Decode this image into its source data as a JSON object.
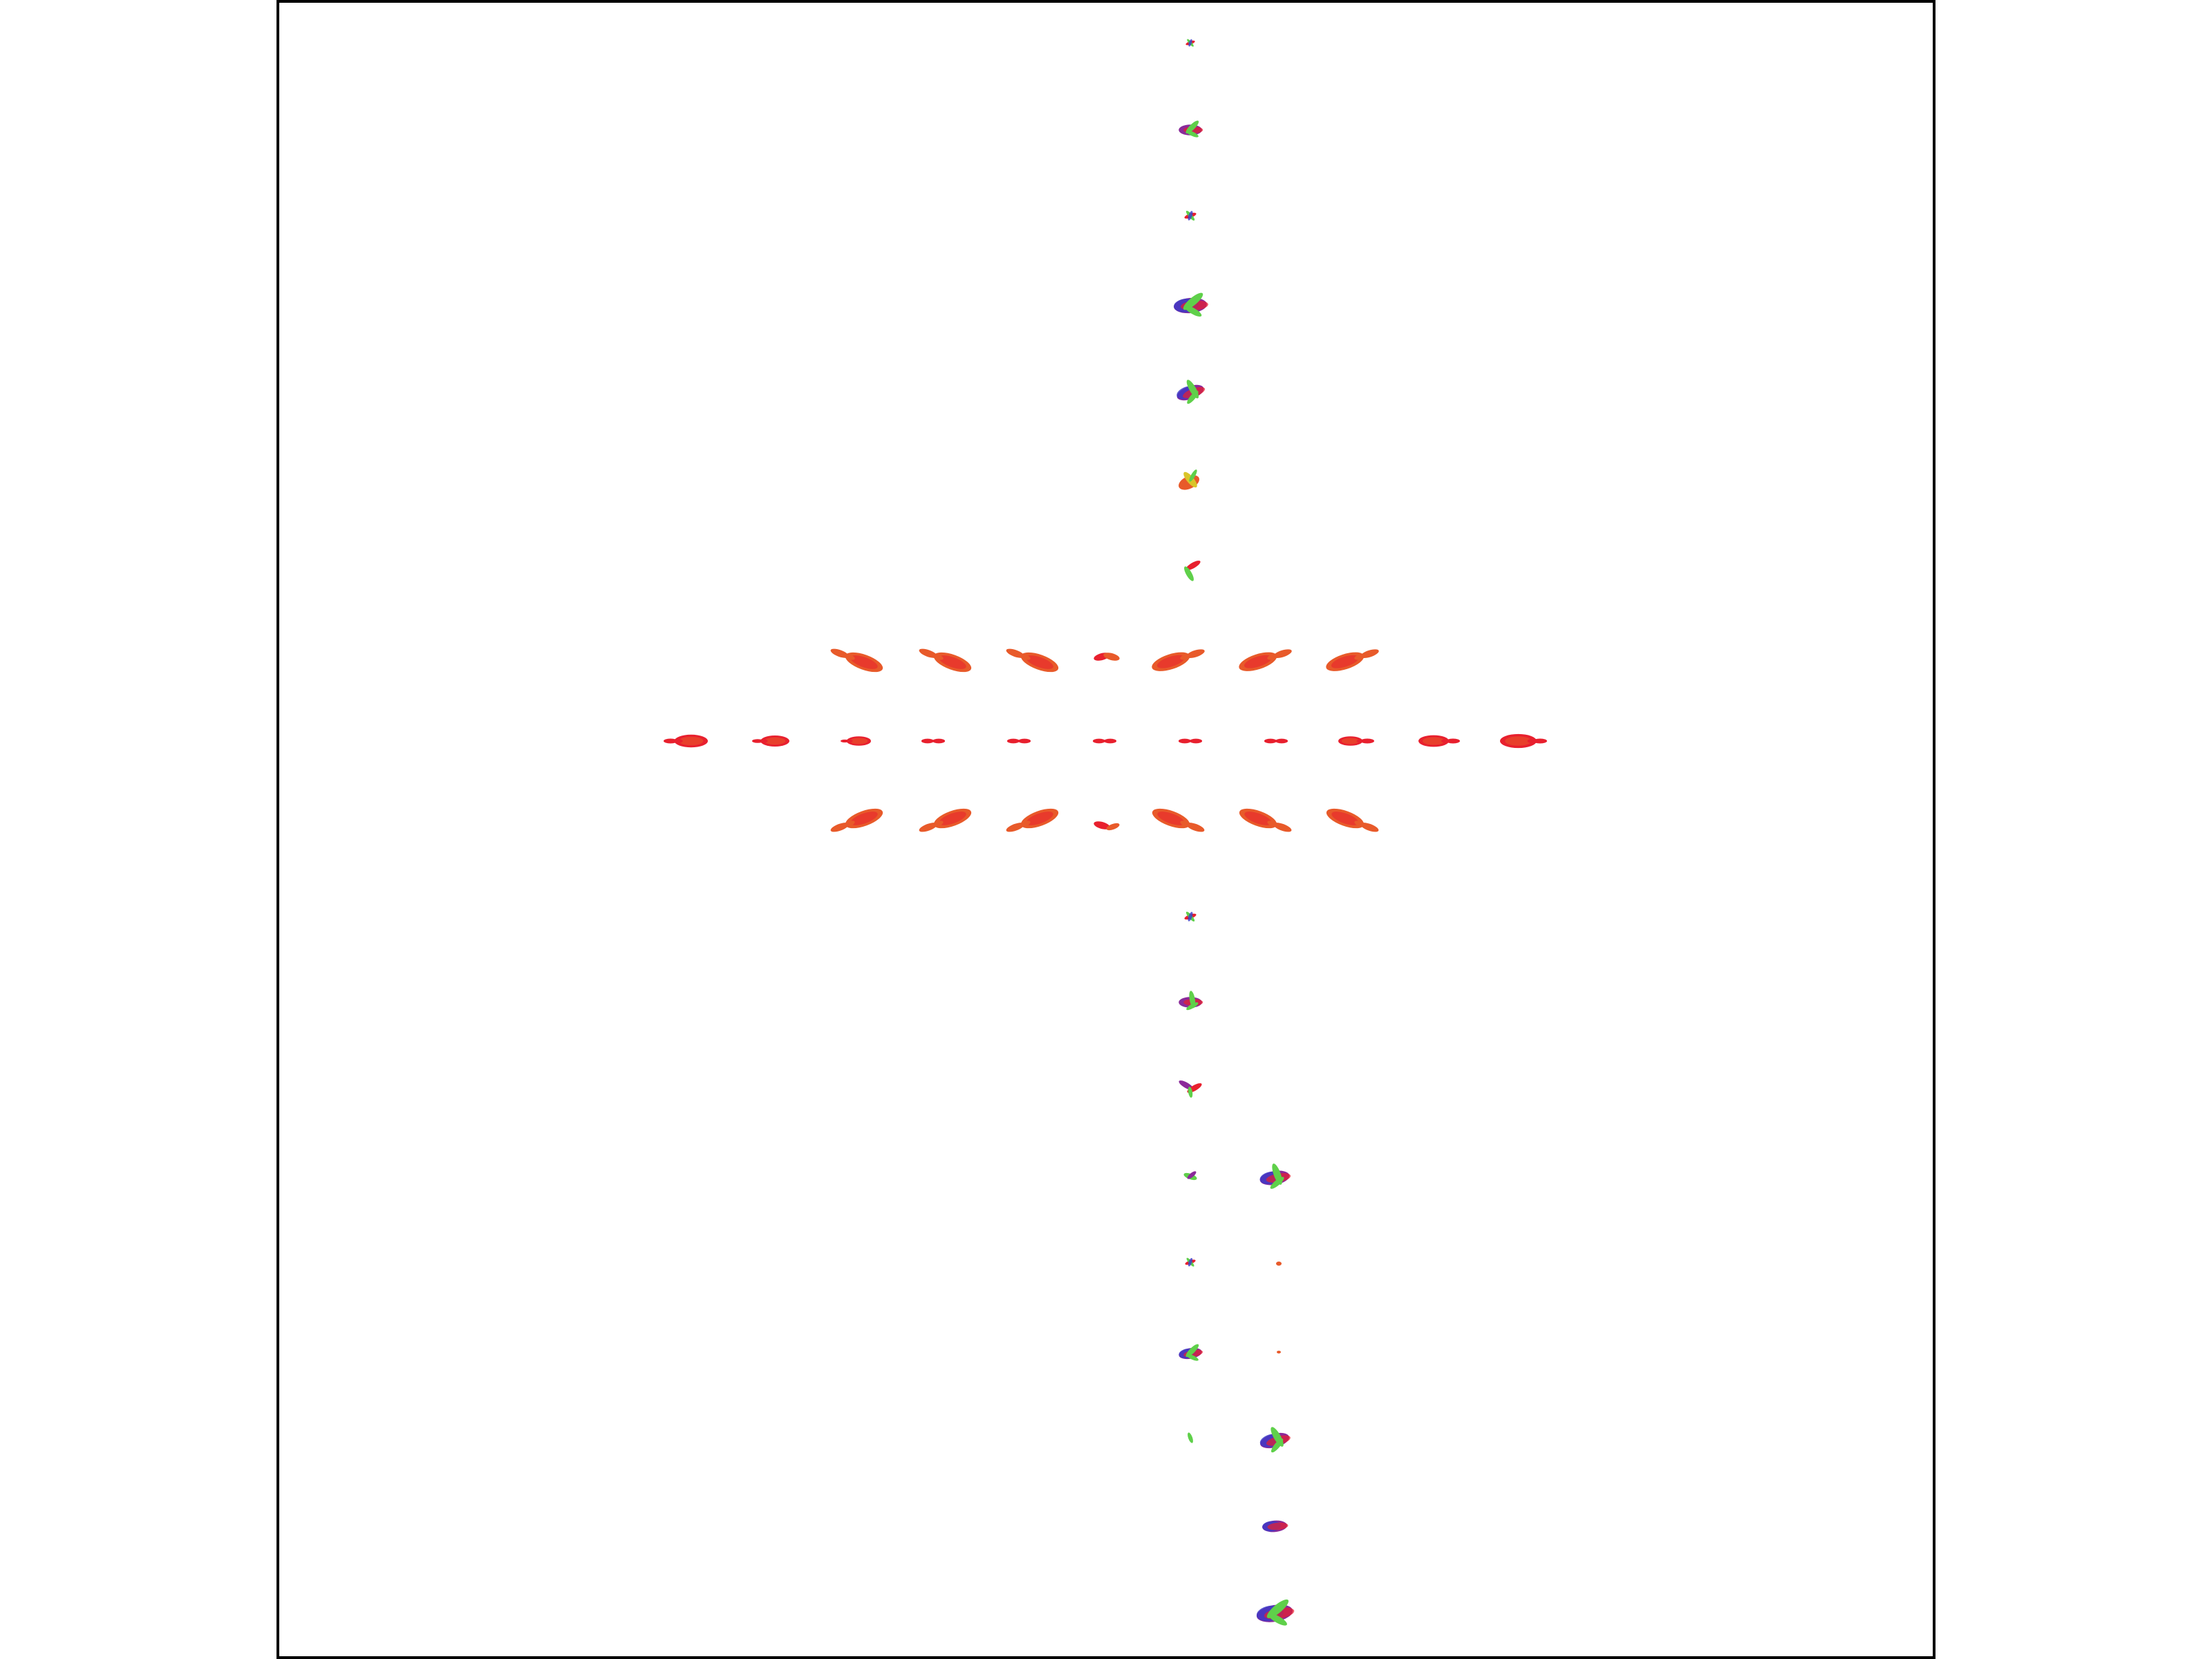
{
  "viewer": {
    "background": "#ffffff",
    "frame_color": "#000000",
    "glyph_palette": [
      "#e8202e",
      "#e85a2a",
      "#d9c52a",
      "#5fd04a",
      "#3a3ac8",
      "#8a2a9a"
    ]
  }
}
